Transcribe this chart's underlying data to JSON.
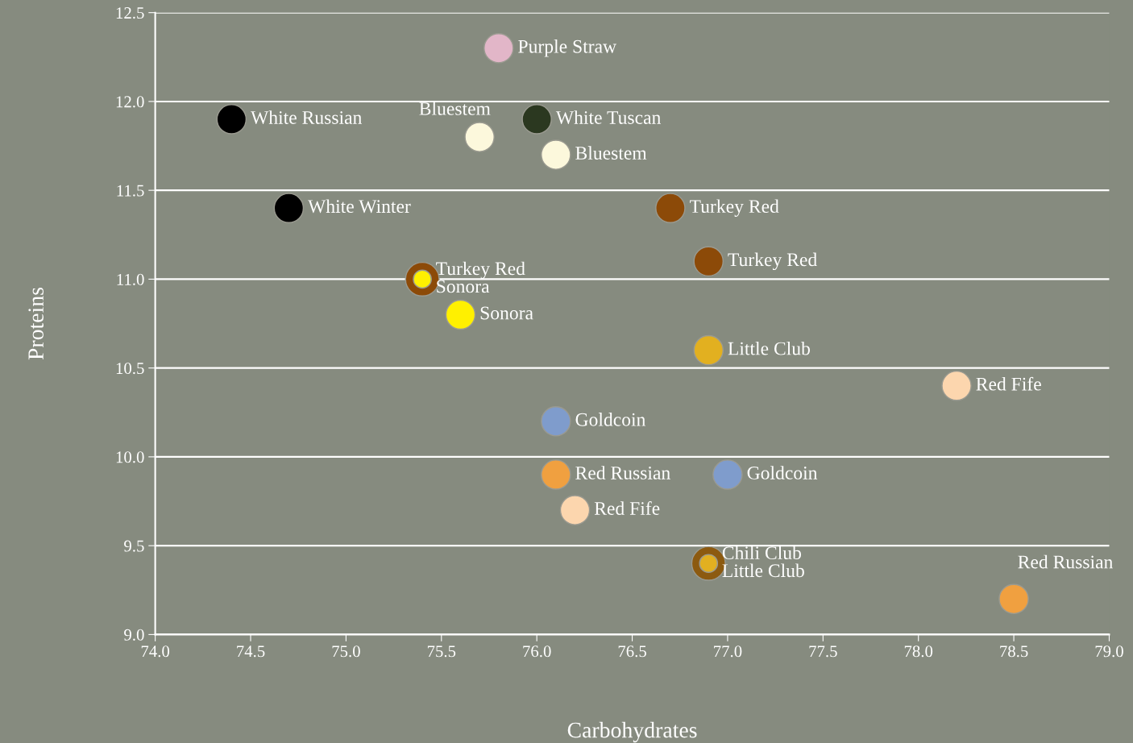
{
  "chart_data": {
    "type": "scatter",
    "xlabel": "Carbohydrates",
    "ylabel": "Proteins",
    "xlim": [
      74.0,
      79.0
    ],
    "xticks": [
      {
        "value": 74.0,
        "label": "74.0"
      },
      {
        "value": 74.5,
        "label": "74.5"
      },
      {
        "value": 75.0,
        "label": "75.0"
      },
      {
        "value": 75.5,
        "label": "75.5"
      },
      {
        "value": 76.0,
        "label": "76.0"
      },
      {
        "value": 76.5,
        "label": "76.5"
      },
      {
        "value": 77.0,
        "label": "77.0"
      },
      {
        "value": 77.5,
        "label": "77.5"
      },
      {
        "value": 78.0,
        "label": "78.0"
      },
      {
        "value": 78.5,
        "label": "78.5"
      },
      {
        "value": 79.0,
        "label": "79.0"
      }
    ],
    "ylim": [
      9.0,
      12.5
    ],
    "yticks": [
      {
        "value": 9.0,
        "label": "9.0"
      },
      9.5,
      {
        "value": 10.0,
        "label": "10.0"
      },
      10.5,
      {
        "value": 11.0,
        "label": "11.0"
      },
      11.5,
      {
        "value": 12.0,
        "label": "12.0"
      },
      12.5
    ],
    "grid": "y",
    "marker": "circle",
    "series": [
      {
        "name": "Purple Straw",
        "color": "#e2b6c8",
        "x": [
          75.8
        ],
        "values": [
          12.3
        ]
      },
      {
        "name": "White Russian",
        "color": "#000000",
        "x": [
          74.4
        ],
        "values": [
          11.9
        ]
      },
      {
        "name": "Bluestem",
        "color": "#fcf8dc",
        "x": [
          75.7,
          76.1
        ],
        "values": [
          11.8,
          11.7
        ]
      },
      {
        "name": "White Tuscan",
        "color": "#2b3820",
        "x": [
          76.0
        ],
        "values": [
          11.9
        ]
      },
      {
        "name": "White Winter",
        "color": "#000000",
        "x": [
          74.7
        ],
        "values": [
          11.4
        ]
      },
      {
        "name": "Turkey Red",
        "color": "#8c4a08",
        "x": [
          76.7,
          76.9,
          75.4
        ],
        "values": [
          11.4,
          11.1,
          11.0
        ]
      },
      {
        "name": "Sonora",
        "color": "#fff000",
        "x": [
          75.4,
          75.6
        ],
        "values": [
          11.0,
          10.8
        ]
      },
      {
        "name": "Chili Club",
        "color": "#8c5a10",
        "x": [
          76.9
        ],
        "values": [
          9.4
        ]
      },
      {
        "name": "Little Club",
        "color": "#e2b020",
        "x": [
          76.9,
          76.9
        ],
        "values": [
          10.6,
          9.4
        ]
      },
      {
        "name": "Red Fife",
        "color": "#fcd6ae",
        "x": [
          78.2,
          76.2
        ],
        "values": [
          10.4,
          9.7
        ]
      },
      {
        "name": "Goldcoin",
        "color": "#7f9ccc",
        "x": [
          76.1,
          77.0
        ],
        "values": [
          10.2,
          9.9
        ]
      },
      {
        "name": "Red Russian",
        "color": "#f0a040",
        "x": [
          76.1,
          78.5
        ],
        "values": [
          9.9,
          9.2
        ]
      }
    ]
  }
}
